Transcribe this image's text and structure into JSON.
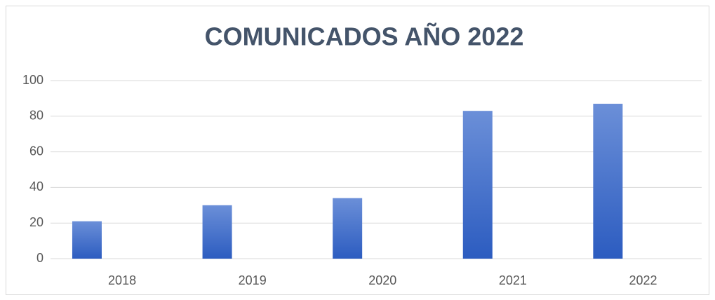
{
  "chart_data": {
    "type": "bar",
    "title": "COMUNICADOS AÑO 2022",
    "categories": [
      "2018",
      "2019",
      "2020",
      "2021",
      "2022"
    ],
    "values": [
      21,
      30,
      34,
      83,
      87
    ],
    "color": "#4472c4",
    "ylim": [
      0,
      100
    ],
    "yticks": [
      0,
      20,
      40,
      60,
      80,
      100
    ],
    "grid": true
  }
}
